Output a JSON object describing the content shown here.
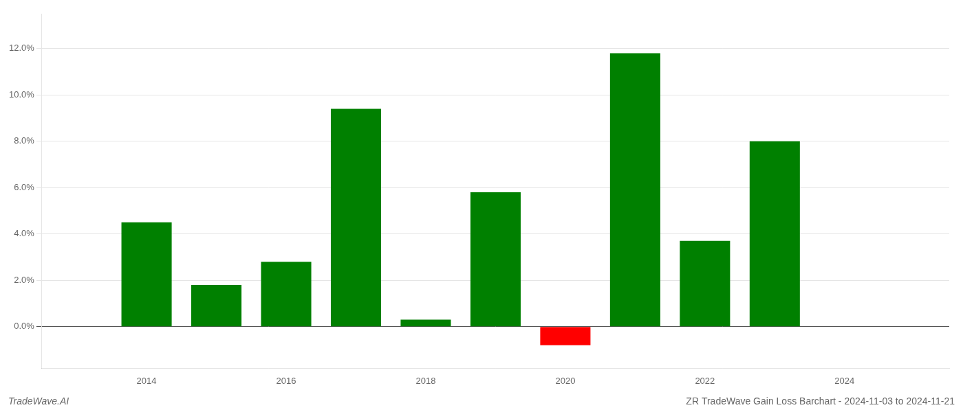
{
  "chart_data": {
    "type": "bar",
    "title": "ZR TradeWave Gain Loss Barchart - 2024-11-03 to 2024-11-21",
    "annotations": [
      "TradeWave.AI"
    ],
    "x": [
      2014,
      2015,
      2016,
      2017,
      2018,
      2019,
      2021,
      2022,
      2023,
      2024,
      2020
    ],
    "values": [
      0.045,
      0.018,
      0.028,
      0.094,
      0.003,
      0.058,
      0.118,
      0.037,
      0.08,
      0.0,
      -0.008
    ],
    "colors": [
      "#008000",
      "#008000",
      "#008000",
      "#008000",
      "#008000",
      "#008000",
      "#008000",
      "#008000",
      "#008000",
      "#008000",
      "#ff0000"
    ],
    "xlim": [
      2012.5,
      2025.5
    ],
    "xticks": [
      2014,
      2016,
      2018,
      2020,
      2022,
      2024
    ],
    "ylim": [
      -0.018,
      0.135
    ],
    "yticks": [
      {
        "value": 0.0,
        "label": "0.0%"
      },
      {
        "value": 0.02,
        "label": "2.0%"
      },
      {
        "value": 0.04,
        "label": "4.0%"
      },
      {
        "value": 0.06,
        "label": "6.0%"
      },
      {
        "value": 0.08,
        "label": "8.0%"
      },
      {
        "value": 0.1,
        "label": "10.0%"
      },
      {
        "value": 0.12,
        "label": "12.0%"
      }
    ],
    "grid": true
  }
}
